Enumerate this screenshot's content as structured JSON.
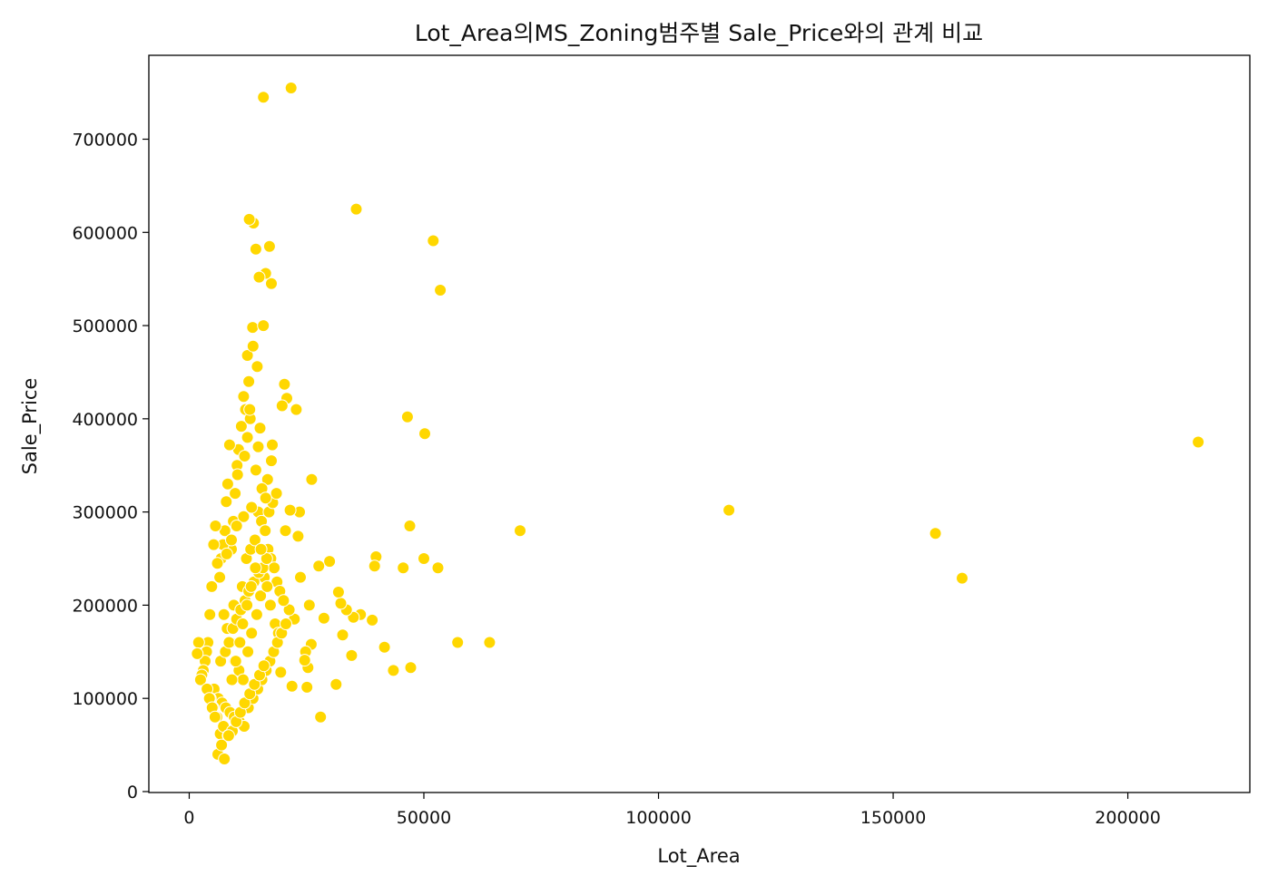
{
  "chart_data": {
    "type": "scatter",
    "title": "Lot_Area의MS_Zoning범주별 Sale_Price와의 관계 비교",
    "xlabel": "Lot_Area",
    "ylabel": "Sale_Price",
    "xlim": [
      -8600,
      226000
    ],
    "ylim": [
      -1000,
      790000
    ],
    "x_ticks": [
      0,
      50000,
      100000,
      150000,
      200000
    ],
    "y_ticks": [
      0,
      100000,
      200000,
      300000,
      400000,
      500000,
      600000,
      700000
    ],
    "grid": false,
    "legend": "none",
    "point_color": "#FFD700",
    "series": [
      {
        "x": [
          215000,
          159000,
          164700,
          115000,
          70500,
          64000,
          57200,
          53500,
          53000,
          52000,
          50200,
          50000,
          47200,
          47000,
          46500,
          45600,
          43500,
          41600,
          39800,
          39500,
          39000,
          36500,
          35600,
          35000,
          34600,
          33500,
          32700,
          32300,
          31800,
          31300,
          29900,
          28700,
          28000,
          27600,
          26100,
          26000,
          25600,
          25300,
          25100,
          24800,
          24600,
          23700,
          23500,
          23200,
          22800,
          22400,
          21900,
          21700,
          21500,
          21300,
          20800,
          20500,
          20300,
          19800,
          19500,
          17700,
          17500,
          17100,
          16300,
          15800,
          14900,
          14200,
          13700,
          13500,
          12800,
          12400,
          12000,
          11600,
          11100,
          10500,
          10200,
          9800,
          9400,
          9000,
          8600,
          8200,
          7900,
          7600,
          7200,
          6800,
          6500,
          6000,
          5600,
          5200,
          4800,
          4400,
          4000,
          3700,
          3400,
          3000,
          2700,
          2400,
          2000,
          1700,
          9500,
          10400,
          11300,
          12200,
          13100,
          14000,
          14700,
          15400,
          16100,
          16800,
          17400,
          18100,
          18700,
          19300,
          20100,
          7400,
          8100,
          8800,
          9700,
          10600,
          11500,
          12500,
          13300,
          14400,
          15200,
          16000,
          16600,
          17300,
          18300,
          19000,
          5300,
          6200,
          7000,
          7800,
          8700,
          9600,
          10700,
          11700,
          12600,
          13600,
          14600,
          15500,
          16400,
          17200,
          18000,
          18800,
          19700,
          20600,
          6700,
          7700,
          8500,
          9300,
          10100,
          11000,
          11900,
          12700,
          13800,
          14800,
          15700,
          16500,
          4500,
          5100,
          5900,
          6600,
          7300,
          8300,
          9200,
          10000,
          10900,
          11800,
          12900,
          13900,
          15000,
          15900,
          3800,
          4300,
          4900,
          5500,
          6100,
          6900,
          7500,
          8400,
          9100,
          9900,
          10800,
          11400,
          12300,
          13200,
          14100,
          15300,
          16200,
          17000,
          17800,
          18600,
          12700,
          13600,
          14500,
          15800,
          13000,
          12400,
          11800,
          14200,
          16700,
          17500,
          15500,
          16300,
          13300,
          11600,
          10100,
          9000,
          8000,
          12900,
          15100,
          14700,
          10300
        ],
        "y": [
          375000,
          277000,
          229000,
          302000,
          280000,
          160000,
          160000,
          538000,
          240000,
          591000,
          384000,
          250000,
          133000,
          285000,
          402000,
          240000,
          130000,
          155000,
          252000,
          242000,
          184000,
          190000,
          625000,
          187000,
          146000,
          195000,
          168000,
          202000,
          214000,
          115000,
          247000,
          186000,
          80000,
          242000,
          335000,
          158000,
          200000,
          133000,
          112000,
          150000,
          141000,
          230000,
          300000,
          274000,
          410000,
          185000,
          113000,
          755000,
          302000,
          195000,
          422000,
          280000,
          437000,
          414000,
          128000,
          372000,
          545000,
          585000,
          556000,
          745000,
          552000,
          582000,
          610000,
          498000,
          614000,
          468000,
          410000,
          424000,
          392000,
          367000,
          350000,
          320000,
          290000,
          260000,
          372000,
          330000,
          311000,
          280000,
          265000,
          250000,
          230000,
          245000,
          285000,
          265000,
          220000,
          190000,
          160000,
          150000,
          140000,
          130000,
          125000,
          120000,
          160000,
          148000,
          200000,
          180000,
          220000,
          250000,
          260000,
          270000,
          300000,
          290000,
          280000,
          260000,
          250000,
          240000,
          225000,
          215000,
          205000,
          190000,
          175000,
          160000,
          140000,
          130000,
          120000,
          150000,
          170000,
          190000,
          210000,
          230000,
          220000,
          200000,
          180000,
          170000,
          110000,
          100000,
          95000,
          90000,
          85000,
          80000,
          75000,
          70000,
          90000,
          100000,
          110000,
          120000,
          130000,
          140000,
          150000,
          160000,
          170000,
          180000,
          140000,
          150000,
          160000,
          175000,
          185000,
          195000,
          205000,
          215000,
          225000,
          235000,
          240000,
          250000,
          100000,
          90000,
          80000,
          62000,
          70000,
          60000,
          65000,
          75000,
          85000,
          95000,
          105000,
          115000,
          125000,
          135000,
          110000,
          100000,
          90000,
          80000,
          40000,
          50000,
          35000,
          60000,
          120000,
          140000,
          160000,
          180000,
          200000,
          220000,
          240000,
          260000,
          280000,
          300000,
          310000,
          320000,
          440000,
          478000,
          456000,
          500000,
          400000,
          380000,
          360000,
          345000,
          335000,
          355000,
          325000,
          315000,
          305000,
          295000,
          285000,
          270000,
          255000,
          410000,
          390000,
          370000,
          340000
        ]
      }
    ]
  }
}
